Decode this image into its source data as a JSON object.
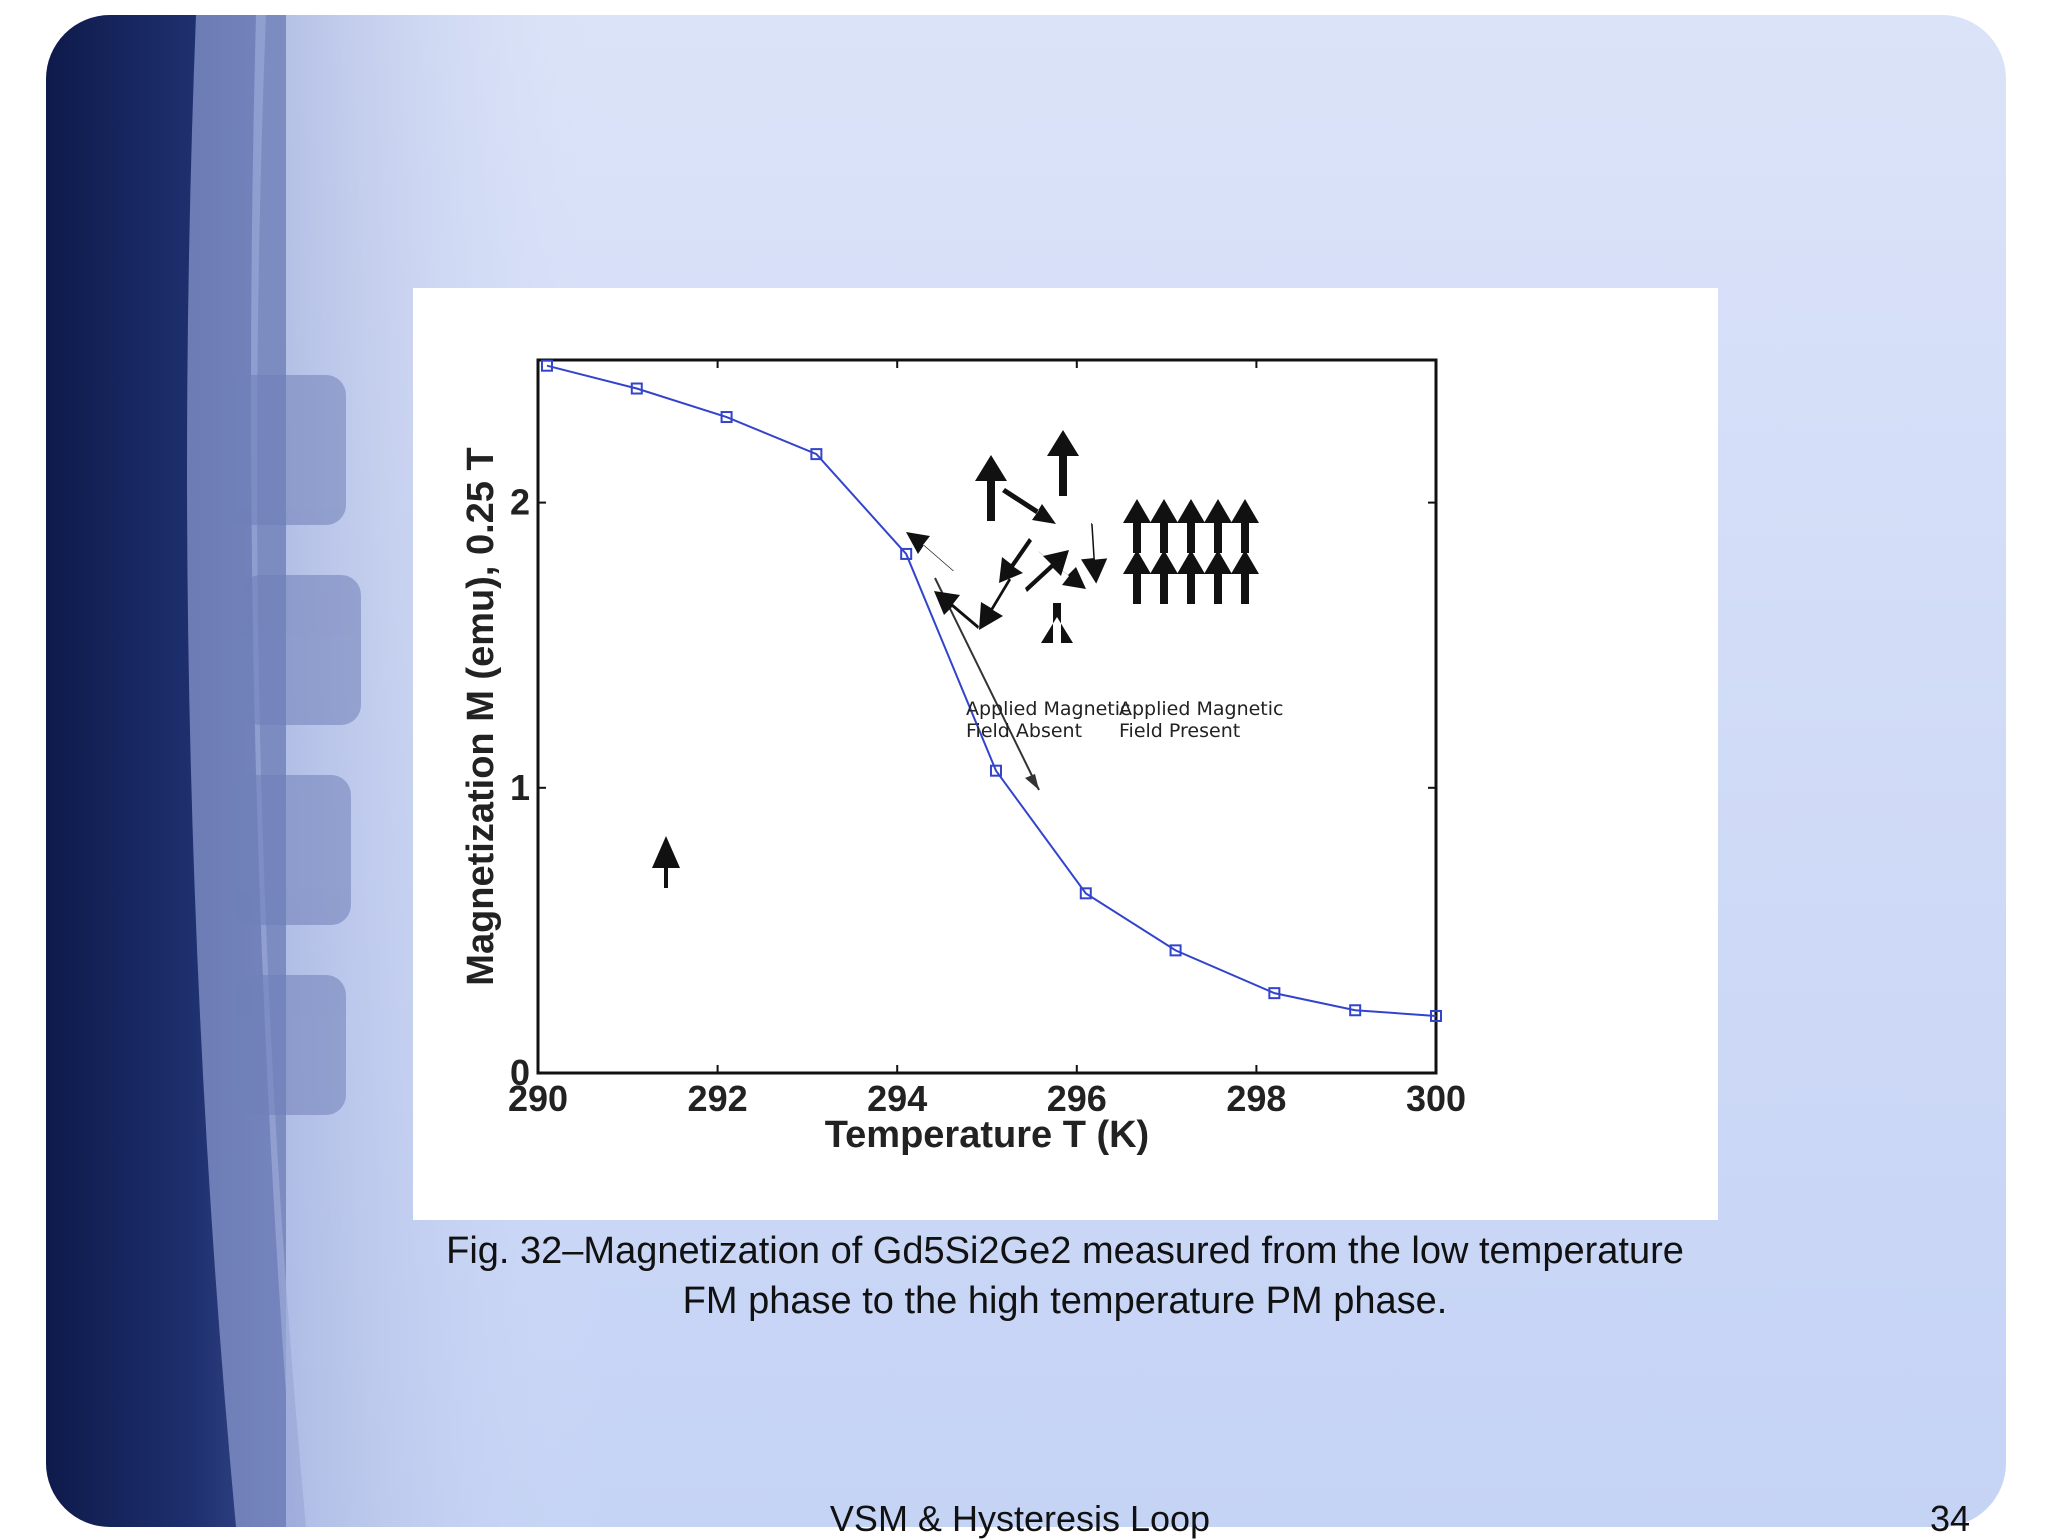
{
  "slide": {
    "footer_title": "VSM & Hysteresis Loop",
    "page_number": "34",
    "caption_line1": "Fig. 32–Magnetization of Gd5Si2Ge2 measured from the low temperature",
    "caption_line2": "FM phase to the high temperature PM phase."
  },
  "colors": {
    "series": "#3344cc",
    "axis": "#111111"
  },
  "chart_data": {
    "type": "line",
    "title": "",
    "xlabel": "Temperature T (K)",
    "ylabel": "Magnetization M (emu), 0.25 T",
    "xlim": [
      290,
      300
    ],
    "ylim": [
      0,
      2.5
    ],
    "x_ticks": [
      "290",
      "292",
      "294",
      "296",
      "298",
      "300"
    ],
    "y_ticks": [
      "0",
      "1",
      "2"
    ],
    "grid": false,
    "series": [
      {
        "marker": "square",
        "x": [
          290.1,
          291.1,
          292.1,
          293.1,
          294.1,
          295.1,
          296.1,
          297.1,
          298.2,
          299.1,
          300.0
        ],
        "y": [
          2.48,
          2.4,
          2.3,
          2.17,
          1.82,
          1.06,
          0.63,
          0.43,
          0.28,
          0.22,
          0.2
        ]
      }
    ],
    "annotations": {
      "arrow": "diagonal arrow pointing down-right along the transition",
      "inset_left_label_line1": "Applied Magnetic",
      "inset_left_label_line2": "Field Absent",
      "inset_right_label_line1": "Applied Magnetic",
      "inset_right_label_line2": "Field Present"
    }
  }
}
